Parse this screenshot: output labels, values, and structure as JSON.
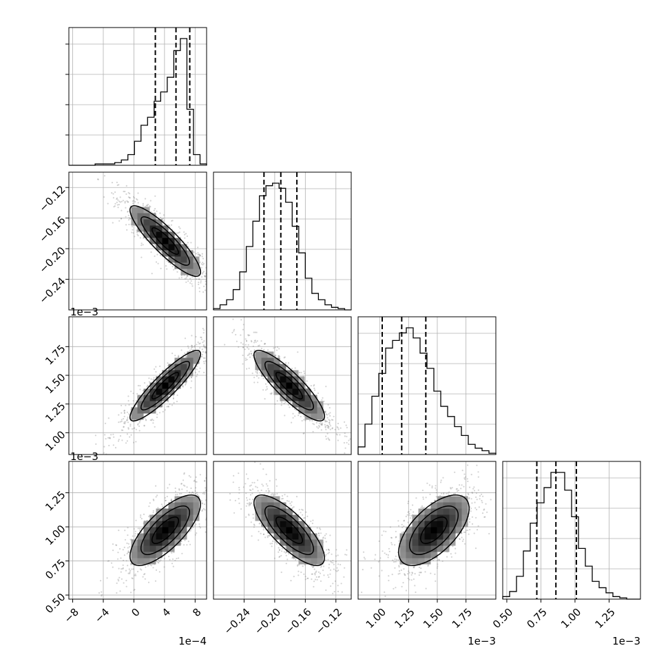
{
  "chart_data": {
    "type": "corner",
    "panel_titles": [],
    "parameters": [
      {
        "range": [
          -0.00085,
          0.00095
        ],
        "ticks": [
          -0.0008,
          -0.0004,
          0.0,
          0.0004,
          0.0008
        ],
        "tick_labels": [
          "−8",
          "−4",
          "0",
          "4",
          "8"
        ],
        "offset": "1e−4",
        "quantiles": [
          0.00028,
          0.00055,
          0.00073
        ]
      },
      {
        "range": [
          -0.28,
          -0.1
        ],
        "ticks": [
          -0.24,
          -0.2,
          -0.16,
          -0.12
        ],
        "tick_labels": [
          "−0.24",
          "−0.20",
          "−0.16",
          "−0.12"
        ],
        "offset": "",
        "quantiles": [
          -0.214,
          -0.192,
          -0.171
        ]
      },
      {
        "range": [
          0.00081,
          0.00201
        ],
        "ticks": [
          0.001,
          0.00125,
          0.0015,
          0.00175
        ],
        "tick_labels": [
          "1.00",
          "1.25",
          "1.50",
          "1.75"
        ],
        "offset": "1e−3",
        "quantiles": [
          0.00102,
          0.00119,
          0.0014
        ]
      },
      {
        "range": [
          0.00047,
          0.00148
        ],
        "ticks": [
          0.0005,
          0.00075,
          0.001,
          0.00125
        ],
        "tick_labels": [
          "0.50",
          "0.75",
          "1.00",
          "1.25"
        ],
        "offset": "1e−3",
        "quantiles": [
          0.00072,
          0.00086,
          0.00101
        ]
      }
    ],
    "histograms": [
      [
        0,
        0,
        0,
        0,
        1,
        1,
        1,
        2,
        4,
        8,
        18,
        30,
        36,
        48,
        55,
        66,
        86,
        95,
        42,
        8,
        1
      ],
      [
        1,
        4,
        8,
        16,
        30,
        50,
        70,
        90,
        98,
        100,
        96,
        85,
        66,
        45,
        25,
        13,
        8,
        4,
        2,
        1,
        0
      ],
      [
        6,
        24,
        46,
        64,
        84,
        90,
        96,
        100,
        92,
        80,
        68,
        50,
        38,
        30,
        22,
        15,
        8,
        5,
        3,
        1
      ],
      [
        2,
        6,
        18,
        38,
        60,
        76,
        88,
        100,
        100,
        86,
        65,
        40,
        26,
        14,
        9,
        5,
        2,
        1,
        0,
        0
      ]
    ],
    "correlations": {
      "1-0": -0.88,
      "2-0": 0.9,
      "2-1": -0.87,
      "3-0": 0.74,
      "3-1": -0.78,
      "3-2": 0.62
    },
    "grid": true,
    "colors": {
      "line": "#000000",
      "points": "#808080",
      "grid": "#b0b0b0"
    }
  }
}
